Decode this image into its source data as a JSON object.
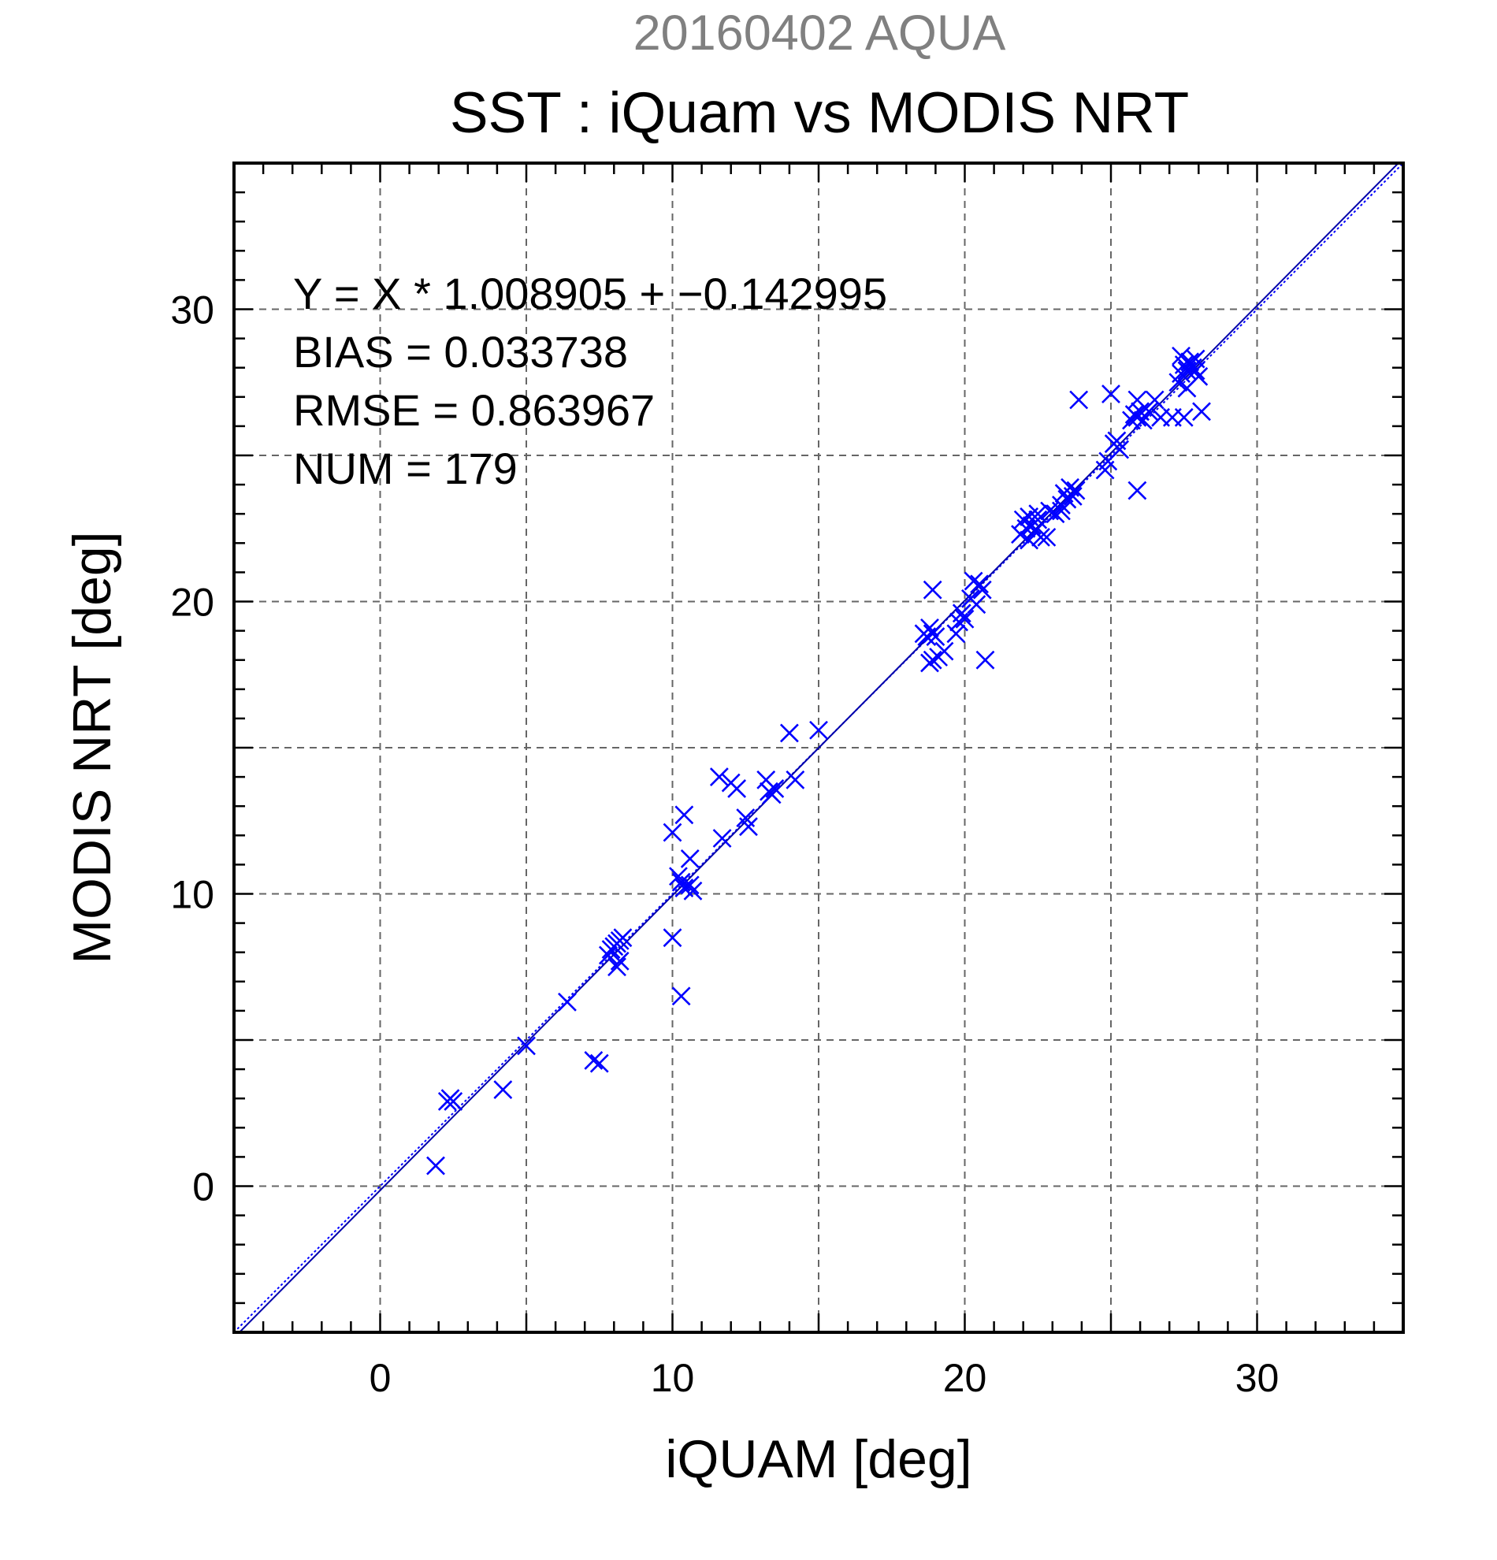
{
  "colors": {
    "marker": "#0000ff",
    "fit_line": "#0000aa",
    "ref_line": "#0000ff",
    "grid": "#666666",
    "frame": "#000000",
    "date_text": "#808080"
  },
  "chart_data": {
    "type": "scatter",
    "title_date": "20160402 AQUA",
    "title": "SST : iQuam vs MODIS NRT",
    "xlabel": "iQUAM [deg]",
    "ylabel": "MODIS NRT [deg]",
    "xlim": [
      -5,
      35
    ],
    "ylim": [
      -5,
      35
    ],
    "xticks": [
      "0",
      "10",
      "20",
      "30"
    ],
    "yticks": [
      "0",
      "10",
      "20",
      "30"
    ],
    "tick_values": [
      0,
      10,
      20,
      30
    ],
    "grid": true,
    "marker": "x",
    "stats": {
      "equation": "Y = X * 1.008905 + −0.142995",
      "bias": "BIAS = 0.033738",
      "rmse": "RMSE = 0.863967",
      "num": "NUM = 179"
    },
    "fit": {
      "slope": 1.008905,
      "intercept": -0.142995
    },
    "points": [
      [
        1.9,
        0.7
      ],
      [
        2.3,
        2.9
      ],
      [
        2.4,
        3.0
      ],
      [
        2.5,
        2.9
      ],
      [
        4.2,
        3.3
      ],
      [
        5.0,
        4.8
      ],
      [
        6.4,
        6.3
      ],
      [
        7.3,
        4.3
      ],
      [
        7.5,
        4.2
      ],
      [
        7.9,
        8.1
      ],
      [
        8.0,
        8.2
      ],
      [
        8.1,
        8.3
      ],
      [
        8.2,
        8.4
      ],
      [
        8.3,
        8.5
      ],
      [
        8.1,
        7.5
      ],
      [
        8.2,
        7.7
      ],
      [
        7.8,
        7.9
      ],
      [
        10.0,
        8.5
      ],
      [
        10.3,
        6.5
      ],
      [
        10.0,
        12.1
      ],
      [
        10.4,
        12.7
      ],
      [
        10.2,
        10.6
      ],
      [
        10.3,
        10.4
      ],
      [
        10.4,
        10.2
      ],
      [
        10.6,
        10.3
      ],
      [
        10.7,
        10.1
      ],
      [
        10.6,
        11.2
      ],
      [
        11.6,
        14.0
      ],
      [
        11.7,
        11.9
      ],
      [
        12.0,
        13.8
      ],
      [
        12.2,
        13.6
      ],
      [
        12.5,
        12.6
      ],
      [
        12.6,
        12.3
      ],
      [
        13.2,
        13.9
      ],
      [
        13.3,
        13.5
      ],
      [
        13.4,
        13.4
      ],
      [
        13.5,
        13.6
      ],
      [
        14.0,
        15.5
      ],
      [
        14.2,
        13.9
      ],
      [
        15.0,
        15.6
      ],
      [
        18.6,
        18.9
      ],
      [
        18.7,
        18.8
      ],
      [
        18.8,
        19.1
      ],
      [
        18.9,
        18.9
      ],
      [
        19.0,
        18.8
      ],
      [
        18.8,
        17.9
      ],
      [
        18.9,
        18.0
      ],
      [
        19.1,
        18.1
      ],
      [
        19.3,
        18.3
      ],
      [
        18.9,
        20.4
      ],
      [
        19.7,
        18.9
      ],
      [
        19.8,
        19.3
      ],
      [
        19.9,
        19.6
      ],
      [
        20.0,
        19.4
      ],
      [
        20.2,
        20.1
      ],
      [
        20.3,
        20.7
      ],
      [
        20.5,
        20.6
      ],
      [
        20.6,
        20.4
      ],
      [
        20.4,
        19.9
      ],
      [
        20.7,
        18.0
      ],
      [
        21.9,
        22.3
      ],
      [
        22.0,
        22.8
      ],
      [
        22.1,
        22.5
      ],
      [
        22.2,
        22.9
      ],
      [
        22.3,
        22.6
      ],
      [
        22.4,
        22.4
      ],
      [
        22.5,
        22.8
      ],
      [
        22.2,
        22.1
      ],
      [
        22.6,
        22.2
      ],
      [
        22.8,
        22.2
      ],
      [
        22.5,
        23.0
      ],
      [
        22.9,
        23.1
      ],
      [
        23.1,
        23.0
      ],
      [
        23.3,
        23.3
      ],
      [
        23.4,
        23.7
      ],
      [
        23.5,
        23.5
      ],
      [
        23.6,
        23.9
      ],
      [
        23.7,
        23.6
      ],
      [
        23.8,
        23.8
      ],
      [
        23.3,
        23.1
      ],
      [
        23.9,
        26.9
      ],
      [
        24.8,
        24.5
      ],
      [
        24.9,
        24.8
      ],
      [
        25.1,
        25.4
      ],
      [
        25.2,
        25.5
      ],
      [
        25.3,
        25.2
      ],
      [
        25.0,
        27.1
      ],
      [
        25.9,
        23.8
      ],
      [
        25.7,
        26.2
      ],
      [
        25.8,
        26.4
      ],
      [
        25.9,
        26.3
      ],
      [
        26.0,
        26.5
      ],
      [
        26.1,
        26.2
      ],
      [
        26.3,
        26.5
      ],
      [
        25.9,
        26.9
      ],
      [
        26.5,
        26.9
      ],
      [
        26.7,
        26.3
      ],
      [
        27.1,
        26.3
      ],
      [
        27.5,
        26.3
      ],
      [
        27.3,
        27.5
      ],
      [
        27.4,
        27.8
      ],
      [
        27.5,
        28.1
      ],
      [
        27.6,
        27.9
      ],
      [
        27.7,
        28.2
      ],
      [
        27.8,
        28.0
      ],
      [
        27.9,
        28.3
      ],
      [
        28.0,
        27.7
      ],
      [
        27.4,
        28.4
      ],
      [
        27.6,
        27.3
      ],
      [
        28.1,
        26.5
      ],
      [
        27.9,
        27.9
      ]
    ]
  }
}
